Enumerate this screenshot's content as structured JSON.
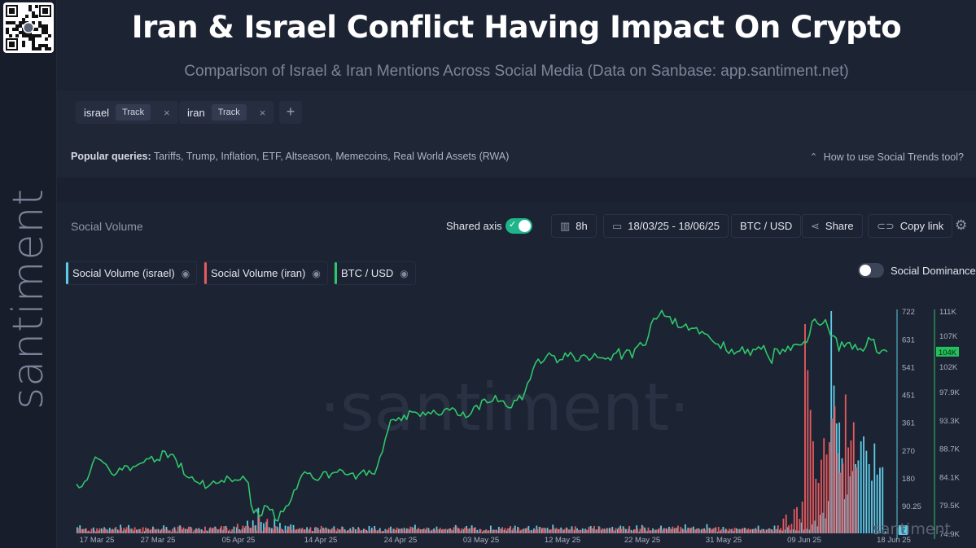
{
  "title": "Iran & Israel Conflict Having Impact On Crypto",
  "subtitle": "Comparison of Israel & Iran Mentions Across Social Media (Data on Sanbase: app.santiment.net)",
  "brand": "santiment",
  "tags": [
    {
      "name": "israel",
      "track": "Track",
      "remove": "×"
    },
    {
      "name": "iran",
      "track": "Track",
      "remove": "×"
    }
  ],
  "add_tag": "+",
  "popular": {
    "label": "Popular queries:",
    "items": "Tariffs, Trump, Inflation, ETF, Altseason, Memecoins, Real World Assets (RWA)"
  },
  "howto": "How to use Social Trends tool?",
  "panel_label": "Social Volume",
  "toolbar": {
    "shared_axis": "Shared axis",
    "interval": "8h",
    "date_range": "18/03/25 - 18/06/25",
    "pair": "BTC / USD",
    "share": "Share",
    "copy_link": "Copy link"
  },
  "social_dominance": "Social Dominance",
  "chart_data": {
    "type": "line",
    "x_ticks": [
      "17 Mar 25",
      "27 Mar 25",
      "05 Apr 25",
      "14 Apr 25",
      "24 Apr 25",
      "03 May 25",
      "12 May 25",
      "22 May 25",
      "31 May 25",
      "09 Jun 25",
      "18 Jun 25"
    ],
    "y_left_ticks": [
      "722",
      "631",
      "541",
      "451",
      "361",
      "270",
      "180",
      "90.25"
    ],
    "y_right_ticks": [
      "111K",
      "107K",
      "102K",
      "97.9K",
      "93.3K",
      "88.7K",
      "84.1K",
      "79.5K",
      "74.9K"
    ],
    "current_price_label": "104K",
    "current_volume_label": "7",
    "series": [
      {
        "name": "Social Volume (israel)",
        "color": "#5ecbe6",
        "type": "bar",
        "values": [
          20,
          26,
          14,
          15,
          7,
          5,
          19,
          6,
          9,
          16,
          20,
          13,
          18,
          14,
          17,
          12,
          28,
          9,
          12,
          27,
          15,
          9,
          12,
          14,
          5,
          7,
          15,
          10,
          22,
          12,
          14,
          11,
          26,
          21,
          9,
          5,
          20,
          6,
          26,
          13,
          14,
          14,
          21,
          5,
          16,
          17,
          13,
          7,
          9,
          16,
          16,
          22,
          13,
          17,
          11,
          24,
          8,
          6,
          22,
          20,
          13,
          14,
          18,
          41,
          18,
          42,
          26,
          83,
          37,
          33,
          38,
          20,
          17,
          47,
          22,
          34,
          13,
          25,
          23,
          29,
          27,
          11,
          14,
          14,
          12,
          20,
          14,
          8,
          19,
          18,
          13,
          18,
          19,
          14,
          12,
          23,
          7,
          12,
          22,
          13,
          9,
          16,
          21,
          13,
          20,
          9,
          15,
          11,
          24,
          18,
          24,
          9,
          17,
          7,
          14,
          11,
          22,
          15,
          11,
          15,
          16,
          18,
          16,
          13,
          20,
          28,
          14,
          13,
          14,
          12,
          17,
          9,
          16,
          22,
          13,
          12,
          13,
          12,
          16,
          10,
          27,
          17,
          9,
          13,
          24,
          15,
          26,
          18,
          11,
          14,
          5,
          10,
          9,
          25,
          12,
          12,
          21,
          15,
          11,
          9,
          18,
          10,
          25,
          21,
          9,
          14,
          16,
          24,
          11,
          16,
          25,
          21,
          16,
          18,
          18,
          12,
          28,
          14,
          13,
          19,
          11,
          19,
          12,
          23,
          10,
          16,
          11,
          16,
          15,
          11,
          24,
          16,
          12,
          23,
          11,
          15,
          17,
          18,
          21,
          9,
          14,
          25,
          23,
          14,
          15,
          11,
          12,
          26,
          6,
          27,
          19,
          7,
          10,
          16,
          12,
          13,
          25,
          16,
          16,
          21,
          14,
          16,
          18,
          6,
          15,
          29,
          18,
          16,
          22,
          13,
          16,
          13,
          16,
          30,
          18,
          12,
          18,
          5,
          8,
          21,
          15,
          8,
          13,
          8,
          16,
          14,
          15,
          18,
          11,
          12,
          14,
          17,
          25,
          10,
          14,
          12,
          16,
          13,
          25,
          14,
          11,
          9,
          12,
          20,
          11,
          13,
          10,
          9,
          35,
          12,
          15,
          12,
          29,
          41,
          23,
          60,
          67,
          49,
          105,
          722,
          480,
          357,
          360,
          244,
          111,
          126,
          185,
          202,
          225,
          237,
          299,
          315,
          268,
          225,
          171,
          292,
          191,
          213,
          215,
          7
        ]
      },
      {
        "name": "Social Volume (iran)",
        "color": "#e35a5e",
        "type": "bar",
        "values": [
          17,
          13,
          14,
          16,
          9,
          15,
          10,
          16,
          16,
          11,
          16,
          9,
          11,
          12,
          21,
          9,
          19,
          18,
          20,
          15,
          15,
          20,
          12,
          14,
          20,
          19,
          16,
          13,
          17,
          14,
          9,
          15,
          14,
          13,
          10,
          15,
          12,
          22,
          22,
          19,
          15,
          22,
          16,
          11,
          14,
          12,
          10,
          22,
          8,
          20,
          18,
          19,
          13,
          24,
          23,
          18,
          12,
          13,
          5,
          31,
          10,
          25,
          24,
          24,
          18,
          26,
          9,
          60,
          8,
          20,
          47,
          17,
          12,
          24,
          15,
          18,
          8,
          11,
          22,
          11,
          14,
          14,
          17,
          18,
          13,
          12,
          20,
          7,
          21,
          11,
          24,
          15,
          16,
          12,
          17,
          13,
          16,
          13,
          20,
          8,
          11,
          9,
          18,
          5,
          16,
          11,
          14,
          8,
          10,
          11,
          14,
          11,
          8,
          8,
          11,
          18,
          9,
          14,
          19,
          14,
          14,
          10,
          16,
          22,
          19,
          13,
          18,
          13,
          16,
          19,
          9,
          12,
          10,
          13,
          18,
          14,
          15,
          15,
          12,
          20,
          23,
          15,
          16,
          19,
          15,
          17,
          18,
          20,
          6,
          13,
          10,
          13,
          10,
          11,
          11,
          9,
          15,
          20,
          17,
          16,
          24,
          17,
          9,
          18,
          12,
          16,
          18,
          9,
          9,
          12,
          13,
          21,
          18,
          15,
          11,
          13,
          18,
          18,
          14,
          14,
          14,
          17,
          13,
          14,
          23,
          11,
          11,
          9,
          12,
          21,
          17,
          24,
          13,
          20,
          16,
          12,
          16,
          14,
          10,
          17,
          19,
          14,
          17,
          7,
          24,
          7,
          13,
          15,
          15,
          23,
          11,
          19,
          9,
          10,
          12,
          17,
          10,
          17,
          13,
          16,
          22,
          18,
          25,
          21,
          12,
          11,
          18,
          19,
          11,
          16,
          11,
          15,
          10,
          18,
          16,
          16,
          20,
          21,
          13,
          11,
          12,
          15,
          15,
          18,
          12,
          13,
          17,
          16,
          16,
          14,
          14,
          13,
          12,
          14,
          7,
          13,
          15,
          8,
          13,
          26,
          17,
          48,
          61,
          26,
          31,
          79,
          85,
          47,
          103,
          680,
          530,
          401,
          299,
          177,
          164,
          239,
          309,
          256,
          296,
          373,
          413,
          261,
          197,
          227,
          451,
          279,
          302,
          361,
          214
        ]
      },
      {
        "name": "BTC / USD",
        "color": "#2fc66a",
        "type": "line",
        "values": [
          82900,
          82300,
          82500,
          83300,
          83600,
          84800,
          86300,
          87300,
          87000,
          86800,
          86400,
          86100,
          85400,
          84600,
          84300,
          84700,
          85500,
          85200,
          85900,
          85800,
          85100,
          85700,
          85800,
          86100,
          86300,
          86400,
          87000,
          87000,
          87400,
          86500,
          86900,
          86700,
          88300,
          88200,
          87200,
          87700,
          87700,
          86900,
          85600,
          86300,
          84500,
          84100,
          83900,
          84100,
          83400,
          83200,
          82900,
          83500,
          82200,
          82500,
          82900,
          83400,
          83000,
          83100,
          83500,
          83200,
          84200,
          83800,
          83300,
          83600,
          83500,
          83600,
          84200,
          83600,
          83100,
          79600,
          78200,
          78800,
          77700,
          77800,
          79400,
          79300,
          78700,
          78800,
          77100,
          76900,
          78500,
          78400,
          79300,
          79500,
          80400,
          81900,
          82100,
          83500,
          84400,
          84900,
          84600,
          84700,
          83900,
          83600,
          83500,
          84100,
          84900,
          84900,
          83900,
          84600,
          84800,
          84800,
          85300,
          85100,
          84500,
          84400,
          84600,
          84700,
          83700,
          84400,
          84800,
          85200,
          84300,
          85100,
          84600,
          84500,
          85700,
          87300,
          88200,
          90200,
          91600,
          93300,
          93400,
          93200,
          93700,
          93200,
          94100,
          93400,
          94800,
          94600,
          94600,
          94400,
          93900,
          94600,
          94100,
          94600,
          94300,
          94900,
          94400,
          94100,
          94200,
          95000,
          95200,
          94900,
          95300,
          95000,
          94100,
          94000,
          94600,
          93700,
          93900,
          94400,
          95400,
          95700,
          95000,
          96500,
          96700,
          96100,
          96200,
          96400,
          97300,
          96300,
          96400,
          96400,
          95600,
          95300,
          95300,
          96500,
          96500,
          97300,
          96600,
          97800,
          99300,
          99900,
          101500,
          102600,
          103200,
          102500,
          102900,
          103600,
          104200,
          103800,
          103700,
          102600,
          103100,
          103100,
          104200,
          103600,
          104300,
          103700,
          102900,
          102900,
          103700,
          103900,
          103600,
          103000,
          103400,
          104100,
          103500,
          103400,
          103400,
          103200,
          103400,
          103000,
          104000,
          104200,
          104900,
          103200,
          104100,
          104700,
          104600,
          103400,
          104900,
          105300,
          105900,
          105400,
          105500,
          106900,
          108900,
          109800,
          109700,
          110300,
          111100,
          110200,
          110100,
          110100,
          108900,
          109800,
          108400,
          108300,
          108500,
          108900,
          107900,
          108200,
          108200,
          108300,
          107300,
          107700,
          107300,
          107200,
          106600,
          106100,
          105700,
          105600,
          104900,
          106000,
          104600,
          104100,
          104800,
          104000,
          104400,
          104500,
          105200,
          104100,
          104800,
          103800,
          104800,
          104700,
          105200,
          104800,
          105400,
          104200,
          103300,
          102500,
          104900,
          104800,
          104000,
          104800,
          104400,
          105300,
          104600,
          105500,
          105600,
          105500,
          105500,
          106000,
          105900,
          107100,
          109300,
          109700,
          109000,
          108700,
          109000,
          109600,
          108200,
          106900,
          107000,
          106600,
          104500,
          106000,
          105200,
          105800,
          105900,
          104800,
          105600,
          104700,
          104900,
          104500,
          105200,
          106700,
          106300,
          106400,
          104400,
          104100,
          104600,
          104700,
          104400
        ]
      }
    ],
    "x_range": [
      "17 Mar 25",
      "18 Jun 25"
    ],
    "y_left_range": [
      0,
      722
    ],
    "y_right_range": [
      74900,
      111000
    ],
    "grid": false,
    "watermark": "·santiment·",
    "corner_watermark": "santiment"
  }
}
